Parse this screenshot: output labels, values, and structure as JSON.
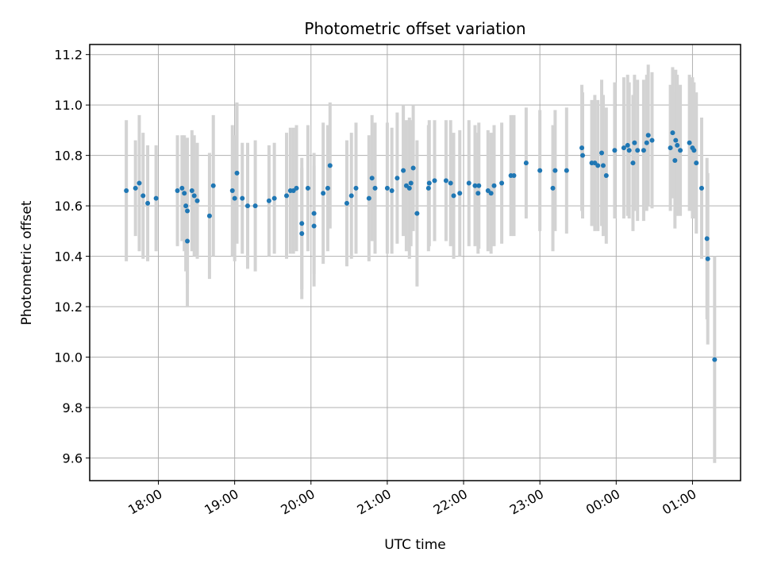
{
  "chart_data": {
    "type": "scatter",
    "title": "Photometric offset variation",
    "xlabel": "UTC time",
    "ylabel": "Photometric offset",
    "x_unit": "UTC time of day (hours; values above 24 fall after midnight)",
    "xlim": [
      17.1,
      25.63
    ],
    "ylim": [
      9.51,
      11.24
    ],
    "x_ticks": [
      18,
      19,
      20,
      21,
      22,
      23,
      24,
      25
    ],
    "x_tick_labels": [
      "18:00",
      "19:00",
      "20:00",
      "21:00",
      "22:00",
      "23:00",
      "00:00",
      "01:00"
    ],
    "y_ticks": [
      9.6,
      9.8,
      10.0,
      10.2,
      10.4,
      10.6,
      10.8,
      11.0,
      11.2
    ],
    "y_tick_labels": [
      "9.6",
      "9.8",
      "10.0",
      "10.2",
      "10.4",
      "10.6",
      "10.8",
      "11.0",
      "11.2"
    ],
    "grid": true,
    "colors": {
      "points": "#1f77b4",
      "error_bars": "#d3d3d3",
      "grid": "#b0b0b0"
    },
    "series": [
      {
        "x_note": "UTC time in hours; y = offset; err = half-length of error bar",
        "points": [
          [
            17.58,
            10.66,
            0.28
          ],
          [
            17.7,
            10.67,
            0.19
          ],
          [
            17.75,
            10.69,
            0.27
          ],
          [
            17.8,
            10.64,
            0.25
          ],
          [
            17.86,
            10.61,
            0.23
          ],
          [
            17.97,
            10.63,
            0.21
          ],
          [
            18.25,
            10.66,
            0.22
          ],
          [
            18.31,
            10.67,
            0.21
          ],
          [
            18.34,
            10.65,
            0.23
          ],
          [
            18.36,
            10.6,
            0.26
          ],
          [
            18.38,
            10.58,
            0.29
          ],
          [
            18.38,
            10.46,
            0.26
          ],
          [
            18.44,
            10.66,
            0.24
          ],
          [
            18.47,
            10.64,
            0.24
          ],
          [
            18.51,
            10.62,
            0.23
          ],
          [
            18.67,
            10.56,
            0.25
          ],
          [
            18.72,
            10.68,
            0.28
          ],
          [
            18.97,
            10.66,
            0.26
          ],
          [
            19.0,
            10.63,
            0.25
          ],
          [
            19.03,
            10.73,
            0.28
          ],
          [
            19.1,
            10.63,
            0.22
          ],
          [
            19.17,
            10.6,
            0.25
          ],
          [
            19.27,
            10.6,
            0.26
          ],
          [
            19.45,
            10.62,
            0.22
          ],
          [
            19.52,
            10.63,
            0.22
          ],
          [
            19.68,
            10.64,
            0.25
          ],
          [
            19.73,
            10.66,
            0.25
          ],
          [
            19.77,
            10.66,
            0.25
          ],
          [
            19.81,
            10.67,
            0.25
          ],
          [
            19.88,
            10.53,
            0.26
          ],
          [
            19.88,
            10.49,
            0.26
          ],
          [
            19.96,
            10.67,
            0.25
          ],
          [
            20.04,
            10.57,
            0.24
          ],
          [
            20.04,
            10.52,
            0.24
          ],
          [
            20.16,
            10.65,
            0.28
          ],
          [
            20.22,
            10.67,
            0.25
          ],
          [
            20.25,
            10.76,
            0.25
          ],
          [
            20.47,
            10.61,
            0.25
          ],
          [
            20.53,
            10.64,
            0.25
          ],
          [
            20.59,
            10.67,
            0.26
          ],
          [
            20.76,
            10.63,
            0.25
          ],
          [
            20.8,
            10.71,
            0.25
          ],
          [
            20.84,
            10.67,
            0.26
          ],
          [
            21.0,
            10.67,
            0.26
          ],
          [
            21.06,
            10.66,
            0.25
          ],
          [
            21.13,
            10.71,
            0.26
          ],
          [
            21.21,
            10.74,
            0.26
          ],
          [
            21.25,
            10.68,
            0.26
          ],
          [
            21.29,
            10.67,
            0.28
          ],
          [
            21.31,
            10.69,
            0.25
          ],
          [
            21.34,
            10.75,
            0.25
          ],
          [
            21.39,
            10.57,
            0.29
          ],
          [
            21.54,
            10.67,
            0.25
          ],
          [
            21.55,
            10.69,
            0.25
          ],
          [
            21.62,
            10.7,
            0.24
          ],
          [
            21.77,
            10.7,
            0.24
          ],
          [
            21.83,
            10.69,
            0.25
          ],
          [
            21.87,
            10.64,
            0.25
          ],
          [
            21.95,
            10.65,
            0.25
          ],
          [
            22.07,
            10.69,
            0.25
          ],
          [
            22.15,
            10.68,
            0.24
          ],
          [
            22.19,
            10.65,
            0.24
          ],
          [
            22.2,
            10.68,
            0.25
          ],
          [
            22.32,
            10.66,
            0.24
          ],
          [
            22.36,
            10.65,
            0.24
          ],
          [
            22.4,
            10.68,
            0.24
          ],
          [
            22.5,
            10.69,
            0.24
          ],
          [
            22.62,
            10.72,
            0.24
          ],
          [
            22.66,
            10.72,
            0.24
          ],
          [
            22.82,
            10.77,
            0.22
          ],
          [
            23.0,
            10.74,
            0.24
          ],
          [
            23.17,
            10.67,
            0.25
          ],
          [
            23.2,
            10.74,
            0.24
          ],
          [
            23.35,
            10.74,
            0.25
          ],
          [
            23.55,
            10.83,
            0.25
          ],
          [
            23.56,
            10.8,
            0.25
          ],
          [
            23.68,
            10.77,
            0.25
          ],
          [
            23.72,
            10.77,
            0.27
          ],
          [
            23.76,
            10.76,
            0.26
          ],
          [
            23.81,
            10.81,
            0.29
          ],
          [
            23.83,
            10.76,
            0.28
          ],
          [
            23.87,
            10.72,
            0.27
          ],
          [
            23.98,
            10.82,
            0.27
          ],
          [
            24.1,
            10.83,
            0.28
          ],
          [
            24.15,
            10.84,
            0.28
          ],
          [
            24.17,
            10.82,
            0.27
          ],
          [
            24.22,
            10.77,
            0.27
          ],
          [
            24.24,
            10.85,
            0.27
          ],
          [
            24.28,
            10.82,
            0.28
          ],
          [
            24.36,
            10.82,
            0.28
          ],
          [
            24.4,
            10.85,
            0.27
          ],
          [
            24.42,
            10.88,
            0.28
          ],
          [
            24.47,
            10.86,
            0.27
          ],
          [
            24.71,
            10.83,
            0.25
          ],
          [
            24.74,
            10.89,
            0.26
          ],
          [
            24.77,
            10.78,
            0.27
          ],
          [
            24.78,
            10.86,
            0.28
          ],
          [
            24.8,
            10.84,
            0.28
          ],
          [
            24.84,
            10.82,
            0.26
          ],
          [
            24.96,
            10.85,
            0.27
          ],
          [
            25.0,
            10.83,
            0.28
          ],
          [
            25.02,
            10.82,
            0.27
          ],
          [
            25.05,
            10.77,
            0.28
          ],
          [
            25.12,
            10.67,
            0.28
          ],
          [
            25.19,
            10.47,
            0.32
          ],
          [
            25.2,
            10.39,
            0.34
          ],
          [
            25.29,
            9.99,
            0.41
          ]
        ]
      }
    ]
  }
}
